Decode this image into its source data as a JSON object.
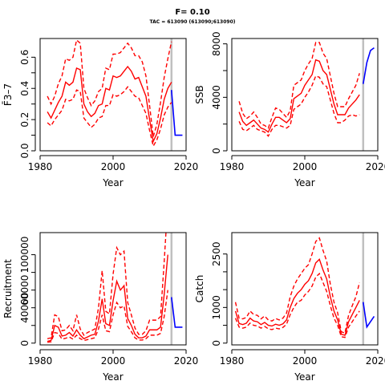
{
  "title": "F= 0.10",
  "subtitle": "TAC = 613090 (613090;613090)",
  "colors": {
    "history": "#ff0000",
    "projection": "#0000ff",
    "divider": "#c0c0c0"
  },
  "chart_data": [
    {
      "type": "line",
      "xlabel": "Year",
      "ylabel": "F̄3–7",
      "xlim": [
        1980,
        2020
      ],
      "ylim": [
        0,
        0.72
      ],
      "xticks": [
        1980,
        2000,
        2020
      ],
      "yticks": [
        0,
        0.1,
        0.2,
        0.3,
        0.4,
        0.5,
        0.6
      ],
      "ytick_labels": [
        "0.0",
        "",
        "0.2",
        "",
        "0.4",
        "",
        "0.6"
      ],
      "divider_year": 2016,
      "x": [
        1982,
        1983,
        1984,
        1985,
        1986,
        1987,
        1988,
        1989,
        1990,
        1991,
        1992,
        1993,
        1994,
        1995,
        1996,
        1997,
        1998,
        1999,
        2000,
        2001,
        2002,
        2003,
        2004,
        2005,
        2006,
        2007,
        2008,
        2009,
        2010,
        2011,
        2012,
        2013,
        2014,
        2015,
        2016
      ],
      "series": [
        {
          "role": "estimate",
          "values": [
            0.25,
            0.21,
            0.26,
            0.31,
            0.35,
            0.44,
            0.42,
            0.44,
            0.53,
            0.52,
            0.3,
            0.25,
            0.22,
            0.24,
            0.29,
            0.3,
            0.4,
            0.39,
            0.48,
            0.47,
            0.48,
            0.51,
            0.54,
            0.51,
            0.46,
            0.47,
            0.41,
            0.35,
            0.2,
            0.06,
            0.11,
            0.21,
            0.33,
            0.4,
            0.44
          ]
        },
        {
          "role": "lower",
          "values": [
            0.18,
            0.16,
            0.2,
            0.23,
            0.26,
            0.33,
            0.32,
            0.33,
            0.39,
            0.38,
            0.21,
            0.18,
            0.15,
            0.17,
            0.21,
            0.22,
            0.29,
            0.29,
            0.36,
            0.35,
            0.36,
            0.38,
            0.41,
            0.38,
            0.35,
            0.34,
            0.29,
            0.24,
            0.13,
            0.03,
            0.07,
            0.14,
            0.23,
            0.28,
            0.31
          ]
        },
        {
          "role": "upper",
          "values": [
            0.35,
            0.3,
            0.35,
            0.43,
            0.48,
            0.59,
            0.58,
            0.6,
            0.71,
            0.69,
            0.4,
            0.34,
            0.29,
            0.32,
            0.38,
            0.4,
            0.53,
            0.52,
            0.62,
            0.62,
            0.63,
            0.66,
            0.69,
            0.66,
            0.61,
            0.61,
            0.57,
            0.48,
            0.29,
            0.09,
            0.17,
            0.31,
            0.47,
            0.59,
            0.7
          ]
        }
      ],
      "projection": {
        "x": [
          2016,
          2017,
          2018,
          2019
        ],
        "values": [
          0.39,
          0.1,
          0.1,
          0.1
        ]
      }
    },
    {
      "type": "line",
      "xlabel": "Year",
      "ylabel": "SSB",
      "xlim": [
        1980,
        2020
      ],
      "ylim": [
        0,
        8400
      ],
      "xticks": [
        1980,
        2000,
        2020
      ],
      "yticks": [
        0,
        2000,
        4000,
        6000,
        8000
      ],
      "ytick_labels": [
        "0",
        "",
        "4000",
        "",
        "8000"
      ],
      "divider_year": 2016,
      "x": [
        1982,
        1983,
        1984,
        1985,
        1986,
        1987,
        1988,
        1989,
        1990,
        1991,
        1992,
        1993,
        1994,
        1995,
        1996,
        1997,
        1998,
        1999,
        2000,
        2001,
        2002,
        2003,
        2004,
        2005,
        2006,
        2007,
        2008,
        2009,
        2010,
        2011,
        2012,
        2013,
        2014,
        2015
      ],
      "series": [
        {
          "role": "estimate",
          "values": [
            2900,
            2200,
            1900,
            2100,
            2300,
            2000,
            1700,
            1600,
            1400,
            2000,
            2500,
            2500,
            2300,
            2100,
            2400,
            3900,
            4100,
            4300,
            4900,
            5300,
            5700,
            6800,
            6700,
            6000,
            5700,
            4600,
            3500,
            2700,
            2700,
            2700,
            3200,
            3500,
            3800,
            4200
          ]
        },
        {
          "role": "lower",
          "values": [
            2200,
            1600,
            1500,
            1700,
            1900,
            1600,
            1500,
            1400,
            1100,
            1600,
            1900,
            1900,
            1800,
            1700,
            1900,
            3100,
            3300,
            3500,
            4000,
            4400,
            4900,
            5600,
            5500,
            5000,
            4800,
            3800,
            2800,
            2100,
            2100,
            2300,
            2600,
            2700,
            2600,
            2700
          ]
        },
        {
          "role": "upper",
          "values": [
            3700,
            2800,
            2400,
            2600,
            2900,
            2500,
            2000,
            1900,
            1700,
            2500,
            3200,
            3100,
            2800,
            2500,
            3000,
            4900,
            5100,
            5300,
            6000,
            6500,
            6900,
            8100,
            8100,
            7300,
            6900,
            5600,
            4300,
            3300,
            3300,
            3300,
            3900,
            4400,
            4900,
            5800
          ]
        }
      ],
      "projection": {
        "x": [
          2016,
          2017,
          2018,
          2019
        ],
        "values": [
          5000,
          6600,
          7500,
          7700
        ]
      }
    },
    {
      "type": "line",
      "xlabel": "Year",
      "ylabel": "Recruitment",
      "xlim": [
        1980,
        2020
      ],
      "ylim": [
        -2000,
        125000
      ],
      "xticks": [
        1980,
        2000,
        2020
      ],
      "yticks": [
        0,
        20000,
        40000,
        60000,
        80000,
        100000
      ],
      "ytick_labels": [
        "0",
        "",
        "40000",
        "60000",
        "",
        "100000"
      ],
      "divider_year": 2016,
      "x": [
        1982,
        1983,
        1984,
        1985,
        1986,
        1987,
        1988,
        1989,
        1990,
        1991,
        1992,
        1993,
        1994,
        1995,
        1996,
        1997,
        1998,
        1999,
        2000,
        2001,
        2002,
        2003,
        2004,
        2005,
        2006,
        2007,
        2008,
        2009,
        2010,
        2011,
        2012,
        2013,
        2014,
        2015
      ],
      "series": [
        {
          "role": "estimate",
          "values": [
            2000,
            3000,
            20000,
            18000,
            8000,
            9000,
            12000,
            8000,
            15000,
            9000,
            5000,
            7000,
            9000,
            10000,
            25000,
            50000,
            22000,
            20000,
            48000,
            70000,
            60000,
            65000,
            28000,
            20000,
            10000,
            6000,
            6000,
            8000,
            15000,
            15000,
            15000,
            18000,
            55000,
            100000
          ]
        },
        {
          "role": "lower",
          "values": [
            1000,
            1500,
            12000,
            11000,
            4500,
            5500,
            7000,
            4500,
            9000,
            5000,
            3000,
            4000,
            5000,
            6000,
            16000,
            32000,
            14000,
            13000,
            32000,
            46000,
            40000,
            42000,
            19000,
            13000,
            6000,
            3500,
            3500,
            5000,
            9000,
            9000,
            9000,
            11000,
            30000,
            60000
          ]
        },
        {
          "role": "upper",
          "values": [
            5000,
            6000,
            32000,
            30000,
            14000,
            15000,
            20000,
            14000,
            32000,
            16000,
            9000,
            12000,
            14000,
            16000,
            40000,
            82000,
            36000,
            33000,
            78000,
            108000,
            100000,
            104000,
            46000,
            32000,
            17000,
            10000,
            10000,
            14000,
            26000,
            26000,
            26000,
            30000,
            92000,
            160000
          ]
        }
      ],
      "projection": {
        "x": [
          2016,
          2017,
          2018,
          2019
        ],
        "values": [
          52000,
          18000,
          18000,
          18000
        ]
      }
    },
    {
      "type": "line",
      "xlabel": "Year",
      "ylabel": "Catch",
      "xlim": [
        1980,
        2020
      ],
      "ylim": [
        -50,
        3100
      ],
      "xticks": [
        1980,
        2000,
        2020
      ],
      "yticks": [
        0,
        500,
        1000,
        1500,
        2000,
        2500
      ],
      "ytick_labels": [
        "0",
        "",
        "1000",
        "",
        "",
        "2500"
      ],
      "divider_year": 2016,
      "x": [
        1981,
        1982,
        1983,
        1984,
        1985,
        1986,
        1987,
        1988,
        1989,
        1990,
        1991,
        1992,
        1993,
        1994,
        1995,
        1996,
        1997,
        1998,
        1999,
        2000,
        2001,
        2002,
        2003,
        2004,
        2005,
        2006,
        2007,
        2008,
        2009,
        2010,
        2011,
        2012,
        2013,
        2014,
        2015
      ],
      "series": [
        {
          "role": "estimate",
          "values": [
            900,
            550,
            520,
            560,
            700,
            620,
            600,
            520,
            580,
            500,
            480,
            530,
            500,
            540,
            650,
            1000,
            1250,
            1400,
            1500,
            1650,
            1750,
            1950,
            2250,
            2350,
            2050,
            1800,
            1300,
            900,
            650,
            250,
            220,
            600,
            800,
            1000,
            1200
          ]
        },
        {
          "role": "lower",
          "values": [
            700,
            450,
            420,
            450,
            560,
            500,
            480,
            420,
            470,
            400,
            380,
            420,
            400,
            440,
            530,
            800,
            1000,
            1150,
            1200,
            1350,
            1450,
            1600,
            1850,
            1950,
            1700,
            1450,
            1050,
            700,
            500,
            180,
            160,
            450,
            600,
            760,
            900
          ]
        },
        {
          "role": "upper",
          "values": [
            1150,
            700,
            680,
            720,
            900,
            800,
            780,
            680,
            760,
            650,
            620,
            690,
            650,
            700,
            840,
            1300,
            1600,
            1800,
            1950,
            2100,
            2200,
            2500,
            2850,
            2950,
            2600,
            2300,
            1650,
            1150,
            850,
            320,
            280,
            780,
            1050,
            1300,
            1700
          ]
        }
      ],
      "projection": {
        "x": [
          2016,
          2017,
          2018,
          2019
        ],
        "values": [
          1150,
          450,
          600,
          750
        ]
      }
    }
  ]
}
